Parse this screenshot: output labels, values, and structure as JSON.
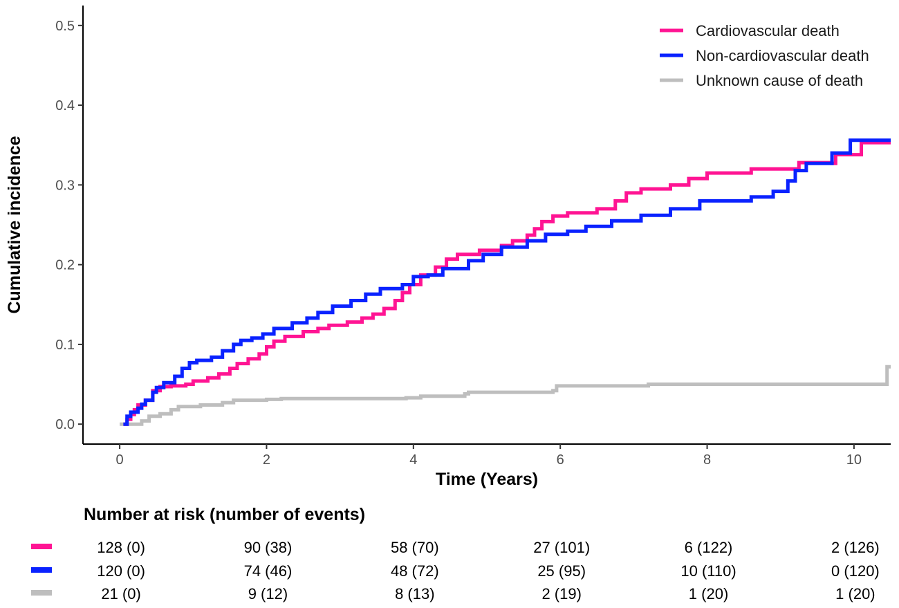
{
  "chart_data": {
    "type": "line",
    "step": true,
    "xlabel": "Time (Years)",
    "ylabel": "Cumulative incidence",
    "xlim": [
      -0.5,
      10.5
    ],
    "ylim": [
      -0.025,
      0.525
    ],
    "xticks": [
      0,
      2,
      4,
      6,
      8,
      10
    ],
    "yticks": [
      0.0,
      0.1,
      0.2,
      0.3,
      0.4,
      0.5
    ],
    "xtick_labels": [
      "0",
      "2",
      "4",
      "6",
      "8",
      "10"
    ],
    "ytick_labels": [
      "0.0",
      "0.1",
      "0.2",
      "0.3",
      "0.4",
      "0.5"
    ],
    "grid": false,
    "legend_position": "top-right",
    "series": [
      {
        "name": "Cardiovascular death",
        "color": "#ff1493",
        "points": [
          [
            0.05,
            0
          ],
          [
            0.1,
            0.006
          ],
          [
            0.15,
            0.012
          ],
          [
            0.2,
            0.018
          ],
          [
            0.25,
            0.024
          ],
          [
            0.3,
            0.024
          ],
          [
            0.35,
            0.03
          ],
          [
            0.45,
            0.042
          ],
          [
            0.55,
            0.047
          ],
          [
            0.7,
            0.048
          ],
          [
            0.9,
            0.05
          ],
          [
            1.0,
            0.054
          ],
          [
            1.2,
            0.058
          ],
          [
            1.35,
            0.063
          ],
          [
            1.5,
            0.07
          ],
          [
            1.6,
            0.076
          ],
          [
            1.75,
            0.082
          ],
          [
            1.9,
            0.088
          ],
          [
            2.0,
            0.097
          ],
          [
            2.1,
            0.104
          ],
          [
            2.25,
            0.11
          ],
          [
            2.5,
            0.116
          ],
          [
            2.7,
            0.12
          ],
          [
            2.85,
            0.124
          ],
          [
            3.1,
            0.128
          ],
          [
            3.3,
            0.133
          ],
          [
            3.45,
            0.138
          ],
          [
            3.6,
            0.145
          ],
          [
            3.75,
            0.155
          ],
          [
            3.85,
            0.165
          ],
          [
            3.95,
            0.175
          ],
          [
            4.1,
            0.187
          ],
          [
            4.3,
            0.197
          ],
          [
            4.45,
            0.207
          ],
          [
            4.6,
            0.213
          ],
          [
            4.9,
            0.218
          ],
          [
            5.2,
            0.224
          ],
          [
            5.35,
            0.23
          ],
          [
            5.55,
            0.237
          ],
          [
            5.65,
            0.245
          ],
          [
            5.75,
            0.254
          ],
          [
            5.9,
            0.261
          ],
          [
            6.1,
            0.265
          ],
          [
            6.5,
            0.27
          ],
          [
            6.75,
            0.28
          ],
          [
            6.9,
            0.29
          ],
          [
            7.1,
            0.295
          ],
          [
            7.5,
            0.3
          ],
          [
            7.75,
            0.308
          ],
          [
            8.0,
            0.315
          ],
          [
            8.6,
            0.32
          ],
          [
            9.15,
            0.32
          ],
          [
            9.25,
            0.328
          ],
          [
            9.7,
            0.327
          ],
          [
            9.75,
            0.338
          ],
          [
            9.85,
            0.338
          ],
          [
            10.05,
            0.338
          ],
          [
            10.1,
            0.353
          ],
          [
            10.5,
            0.353
          ]
        ]
      },
      {
        "name": "Non-cardiovascular death",
        "color": "#0a22ff",
        "points": [
          [
            0.05,
            0
          ],
          [
            0.1,
            0.01
          ],
          [
            0.15,
            0.015
          ],
          [
            0.25,
            0.02
          ],
          [
            0.3,
            0.025
          ],
          [
            0.35,
            0.03
          ],
          [
            0.45,
            0.04
          ],
          [
            0.5,
            0.046
          ],
          [
            0.6,
            0.052
          ],
          [
            0.75,
            0.06
          ],
          [
            0.85,
            0.07
          ],
          [
            0.95,
            0.077
          ],
          [
            1.05,
            0.08
          ],
          [
            1.25,
            0.084
          ],
          [
            1.4,
            0.092
          ],
          [
            1.55,
            0.1
          ],
          [
            1.65,
            0.105
          ],
          [
            1.8,
            0.108
          ],
          [
            1.95,
            0.113
          ],
          [
            2.1,
            0.12
          ],
          [
            2.35,
            0.127
          ],
          [
            2.55,
            0.133
          ],
          [
            2.7,
            0.14
          ],
          [
            2.9,
            0.148
          ],
          [
            3.15,
            0.155
          ],
          [
            3.35,
            0.163
          ],
          [
            3.55,
            0.17
          ],
          [
            3.85,
            0.175
          ],
          [
            4.0,
            0.185
          ],
          [
            4.2,
            0.187
          ],
          [
            4.4,
            0.195
          ],
          [
            4.75,
            0.205
          ],
          [
            4.95,
            0.213
          ],
          [
            5.2,
            0.222
          ],
          [
            5.55,
            0.23
          ],
          [
            5.8,
            0.238
          ],
          [
            6.1,
            0.242
          ],
          [
            6.35,
            0.248
          ],
          [
            6.7,
            0.255
          ],
          [
            7.1,
            0.262
          ],
          [
            7.5,
            0.27
          ],
          [
            7.9,
            0.28
          ],
          [
            8.6,
            0.285
          ],
          [
            8.9,
            0.292
          ],
          [
            9.1,
            0.305
          ],
          [
            9.2,
            0.318
          ],
          [
            9.35,
            0.327
          ],
          [
            9.7,
            0.34
          ],
          [
            9.95,
            0.356
          ],
          [
            10.5,
            0.356
          ]
        ]
      },
      {
        "name": "Unknown cause of death",
        "color": "#bebebe",
        "points": [
          [
            0.0,
            0
          ],
          [
            0.25,
            0
          ],
          [
            0.3,
            0.004
          ],
          [
            0.4,
            0.01
          ],
          [
            0.55,
            0.013
          ],
          [
            0.7,
            0.018
          ],
          [
            0.8,
            0.022
          ],
          [
            1.1,
            0.024
          ],
          [
            1.4,
            0.027
          ],
          [
            1.55,
            0.03
          ],
          [
            2.0,
            0.031
          ],
          [
            2.2,
            0.032
          ],
          [
            3.9,
            0.033
          ],
          [
            4.1,
            0.035
          ],
          [
            4.7,
            0.038
          ],
          [
            4.75,
            0.04
          ],
          [
            5.9,
            0.042
          ],
          [
            5.95,
            0.048
          ],
          [
            7.2,
            0.05
          ],
          [
            10.4,
            0.05
          ],
          [
            10.45,
            0.072
          ],
          [
            10.5,
            0.072
          ]
        ]
      }
    ],
    "risk_table": {
      "title": "Number at risk (number of events)",
      "times": [
        0,
        2,
        4,
        6,
        8,
        10
      ],
      "rows": [
        {
          "color": "#ff1493",
          "cells": [
            "128 (0)",
            "90 (38)",
            "58 (70)",
            "27 (101)",
            "6 (122)",
            "2 (126)"
          ]
        },
        {
          "color": "#0a22ff",
          "cells": [
            "120 (0)",
            "74 (46)",
            "48 (72)",
            "25 (95)",
            "10 (110)",
            "0 (120)"
          ]
        },
        {
          "color": "#bebebe",
          "cells": [
            "21 (0)",
            "9 (12)",
            "8 (13)",
            "2 (19)",
            "1 (20)",
            "1 (20)"
          ]
        }
      ]
    }
  }
}
